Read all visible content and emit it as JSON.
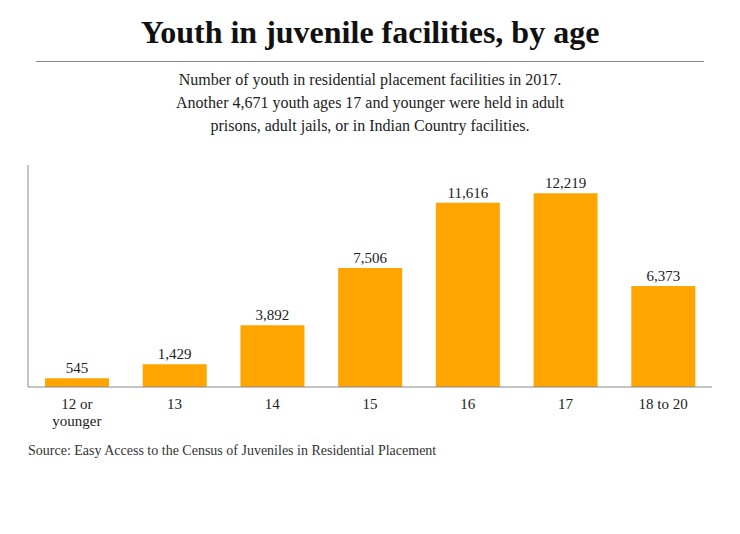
{
  "chart_data": {
    "type": "bar",
    "title": "Youth in juvenile facilities, by age",
    "subtitle": "Number of youth in residential placement facilities in 2017.\nAnother 4,671 youth ages 17 and younger were held in adult\nprisons, adult jails, or in Indian Country facilities.",
    "annotations": [
      "Source: Easy Access to the Census of Juveniles in Residential Placement"
    ],
    "categories": [
      "12 or\nyounger",
      "13",
      "14",
      "15",
      "16",
      "17",
      "18 to 20"
    ],
    "values": [
      545,
      1429,
      3892,
      7506,
      11616,
      12219,
      6373
    ],
    "value_labels": [
      "545",
      "1,429",
      "3,892",
      "7,506",
      "11,616",
      "12,219",
      "6,373"
    ],
    "data_labels": true,
    "color": "#FFA500",
    "ylim": [
      0,
      14000
    ],
    "grid": false,
    "tick_labels": "x"
  }
}
